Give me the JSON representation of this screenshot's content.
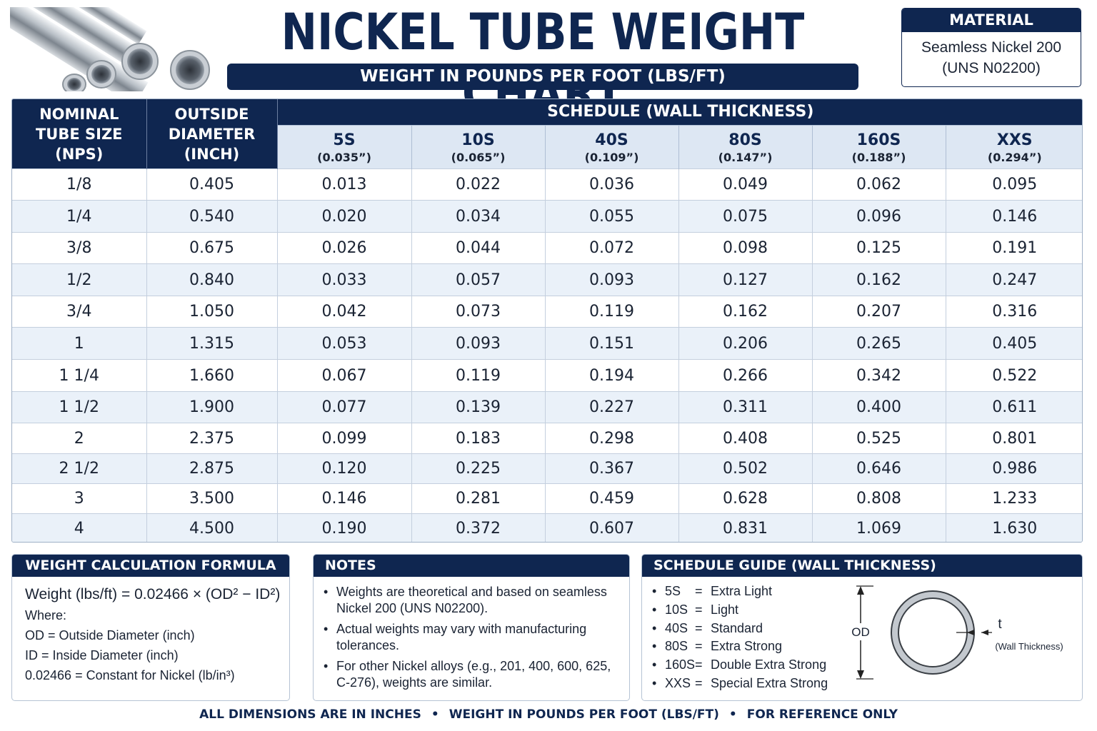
{
  "header": {
    "title": "NICKEL TUBE WEIGHT CHART",
    "subtitle": "WEIGHT IN POUNDS PER FOOT (LBS/FT)"
  },
  "material": {
    "heading": "MATERIAL",
    "line1": "Seamless Nickel 200",
    "line2": "(UNS N02200)"
  },
  "table": {
    "col_nps": [
      "NOMINAL",
      "TUBE SIZE",
      "(NPS)"
    ],
    "col_od": [
      "OUTSIDE",
      "DIAMETER",
      "(INCH)"
    ],
    "schedule_heading": "SCHEDULE (WALL THICKNESS)",
    "schedules": [
      {
        "code": "5S",
        "wall": "(0.035”)"
      },
      {
        "code": "10S",
        "wall": "(0.065”)"
      },
      {
        "code": "40S",
        "wall": "(0.109”)"
      },
      {
        "code": "80S",
        "wall": "(0.147”)"
      },
      {
        "code": "160S",
        "wall": "(0.188”)"
      },
      {
        "code": "XXS",
        "wall": "(0.294”)"
      }
    ],
    "rows": [
      [
        "1/8",
        "0.405",
        "0.013",
        "0.022",
        "0.036",
        "0.049",
        "0.062",
        "0.095"
      ],
      [
        "1/4",
        "0.540",
        "0.020",
        "0.034",
        "0.055",
        "0.075",
        "0.096",
        "0.146"
      ],
      [
        "3/8",
        "0.675",
        "0.026",
        "0.044",
        "0.072",
        "0.098",
        "0.125",
        "0.191"
      ],
      [
        "1/2",
        "0.840",
        "0.033",
        "0.057",
        "0.093",
        "0.127",
        "0.162",
        "0.247"
      ],
      [
        "3/4",
        "1.050",
        "0.042",
        "0.073",
        "0.119",
        "0.162",
        "0.207",
        "0.316"
      ],
      [
        "1",
        "1.315",
        "0.053",
        "0.093",
        "0.151",
        "0.206",
        "0.265",
        "0.405"
      ],
      [
        "1 1/4",
        "1.660",
        "0.067",
        "0.119",
        "0.194",
        "0.266",
        "0.342",
        "0.522"
      ],
      [
        "1 1/2",
        "1.900",
        "0.077",
        "0.139",
        "0.227",
        "0.311",
        "0.400",
        "0.611"
      ],
      [
        "2",
        "2.375",
        "0.099",
        "0.183",
        "0.298",
        "0.408",
        "0.525",
        "0.801"
      ],
      [
        "2 1/2",
        "2.875",
        "0.120",
        "0.225",
        "0.367",
        "0.502",
        "0.646",
        "0.986"
      ],
      [
        "3",
        "3.500",
        "0.146",
        "0.281",
        "0.459",
        "0.628",
        "0.808",
        "1.233"
      ],
      [
        "4",
        "4.500",
        "0.190",
        "0.372",
        "0.607",
        "0.831",
        "1.069",
        "1.630"
      ]
    ]
  },
  "formula_panel": {
    "heading": "WEIGHT CALCULATION FORMULA",
    "formula": "Weight (lbs/ft) = 0.02466 × (OD² − ID²)",
    "where": "Where:",
    "od_def": "OD = Outside Diameter (inch)",
    "id_def": "ID = Inside Diameter (inch)",
    "const_def": "0.02466 = Constant for Nickel (lb/in³)"
  },
  "notes_panel": {
    "heading": "NOTES",
    "items": [
      "Weights are theoretical and based on seamless Nickel 200 (UNS N02200).",
      "Actual weights may vary with manufacturing tolerances.",
      "For other Nickel alloys (e.g., 201, 400, 600, 625, C-276), weights are similar."
    ]
  },
  "guide_panel": {
    "heading": "SCHEDULE GUIDE (WALL THICKNESS)",
    "items": [
      {
        "code": "5S",
        "desc": "Extra Light"
      },
      {
        "code": "10S",
        "desc": "Light"
      },
      {
        "code": "40S",
        "desc": "Standard"
      },
      {
        "code": "80S",
        "desc": "Extra Strong"
      },
      {
        "code": "160S",
        "desc": "Double Extra Strong"
      },
      {
        "code": "XXS",
        "desc": "Special Extra Strong"
      }
    ],
    "eq": "=",
    "bullet": "•",
    "diagram": {
      "od_label": "OD",
      "t_label": "t",
      "wall_label": "(Wall Thickness)"
    }
  },
  "footer": {
    "items": [
      "ALL DIMENSIONS ARE IN INCHES",
      "WEIGHT IN POUNDS PER FOOT (LBS/FT)",
      "FOR REFERENCE ONLY"
    ],
    "separator": "•"
  },
  "colors": {
    "navy": "#0f2650",
    "row_alt": "#eaf1f9",
    "subheader": "#dde7f3"
  }
}
